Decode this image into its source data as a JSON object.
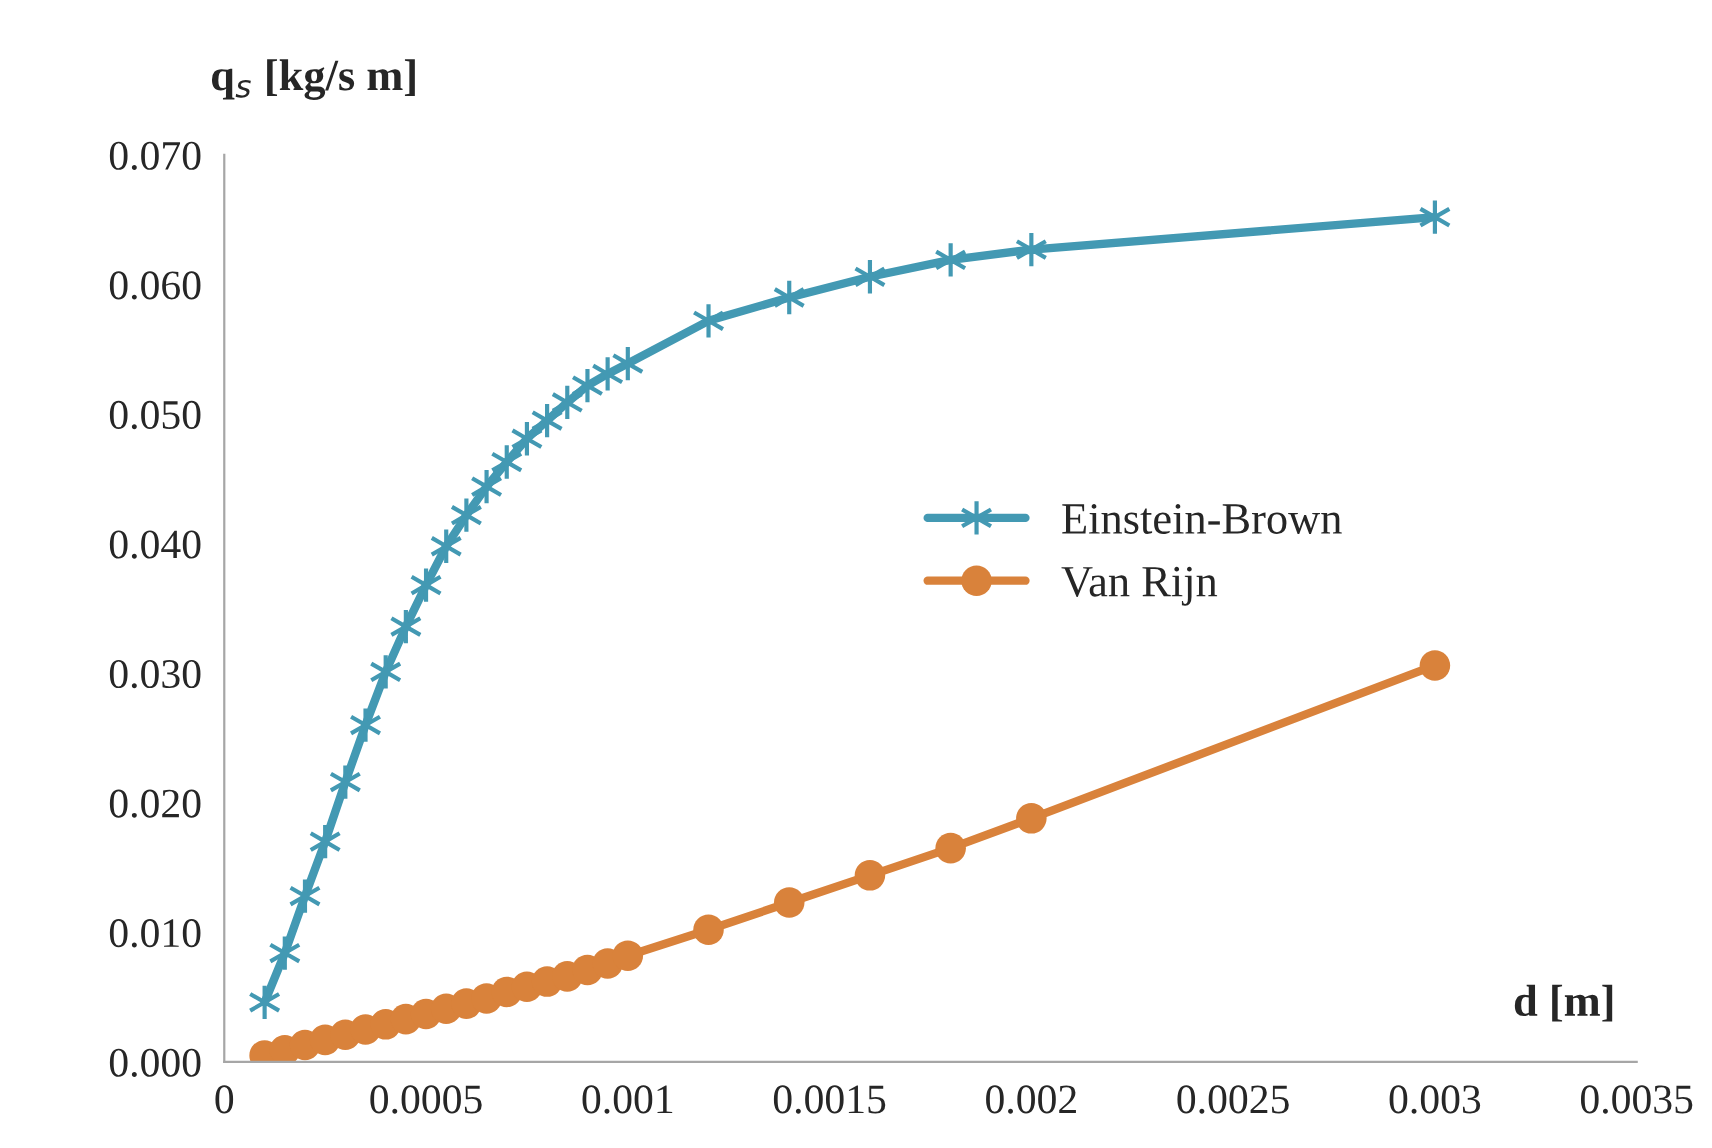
{
  "chart_data": {
    "type": "line",
    "xlabel": "d [m]",
    "ylabel": "q$_{s}$ [kg/s m]",
    "x": [
      0.0001,
      0.00015,
      0.0002,
      0.00025,
      0.0003,
      0.00035,
      0.0004,
      0.00045,
      0.0005,
      0.00055,
      0.0006,
      0.00065,
      0.0007,
      0.00075,
      0.0008,
      0.00085,
      0.0009,
      0.00095,
      0.001,
      0.0012,
      0.0014,
      0.0016,
      0.0018,
      0.002,
      0.003
    ],
    "series": [
      {
        "name": "Einstein-Brown",
        "color": "#4399b3",
        "marker": "cross",
        "values": [
          0.0046,
          0.0084,
          0.0128,
          0.017,
          0.0216,
          0.026,
          0.0301,
          0.0336,
          0.0368,
          0.0398,
          0.0422,
          0.0444,
          0.0463,
          0.0481,
          0.0495,
          0.0509,
          0.0522,
          0.0531,
          0.0539,
          0.0572,
          0.059,
          0.0606,
          0.0619,
          0.0627,
          0.0652
        ]
      },
      {
        "name": "Van Rijn",
        "color": "#d9823b",
        "marker": "circle",
        "values": [
          0.0005,
          0.0009,
          0.0013,
          0.0017,
          0.0021,
          0.0025,
          0.0029,
          0.0033,
          0.0037,
          0.0041,
          0.0045,
          0.0049,
          0.0054,
          0.0058,
          0.0062,
          0.0066,
          0.0071,
          0.0076,
          0.0082,
          0.0102,
          0.0123,
          0.0144,
          0.0165,
          0.0188,
          0.0306
        ]
      }
    ],
    "xlim": [
      0,
      0.0035
    ],
    "ylim": [
      0,
      0.07
    ],
    "xticks": [
      0,
      0.0005,
      0.001,
      0.0015,
      0.002,
      0.0025,
      0.003,
      0.0035
    ],
    "yticks": [
      {
        "value": 0,
        "label": "0.000"
      },
      {
        "value": 0.01,
        "label": "0.010"
      },
      {
        "value": 0.02,
        "label": "0.020"
      },
      {
        "value": 0.03,
        "label": "0.030"
      },
      {
        "value": 0.04,
        "label": "0.040"
      },
      {
        "value": 0.05,
        "label": "0.050"
      },
      {
        "value": 0.06,
        "label": "0.060"
      },
      {
        "value": 0.07,
        "label": "0.070"
      }
    ],
    "grid": false,
    "legend": "right",
    "line_style": "solid"
  }
}
